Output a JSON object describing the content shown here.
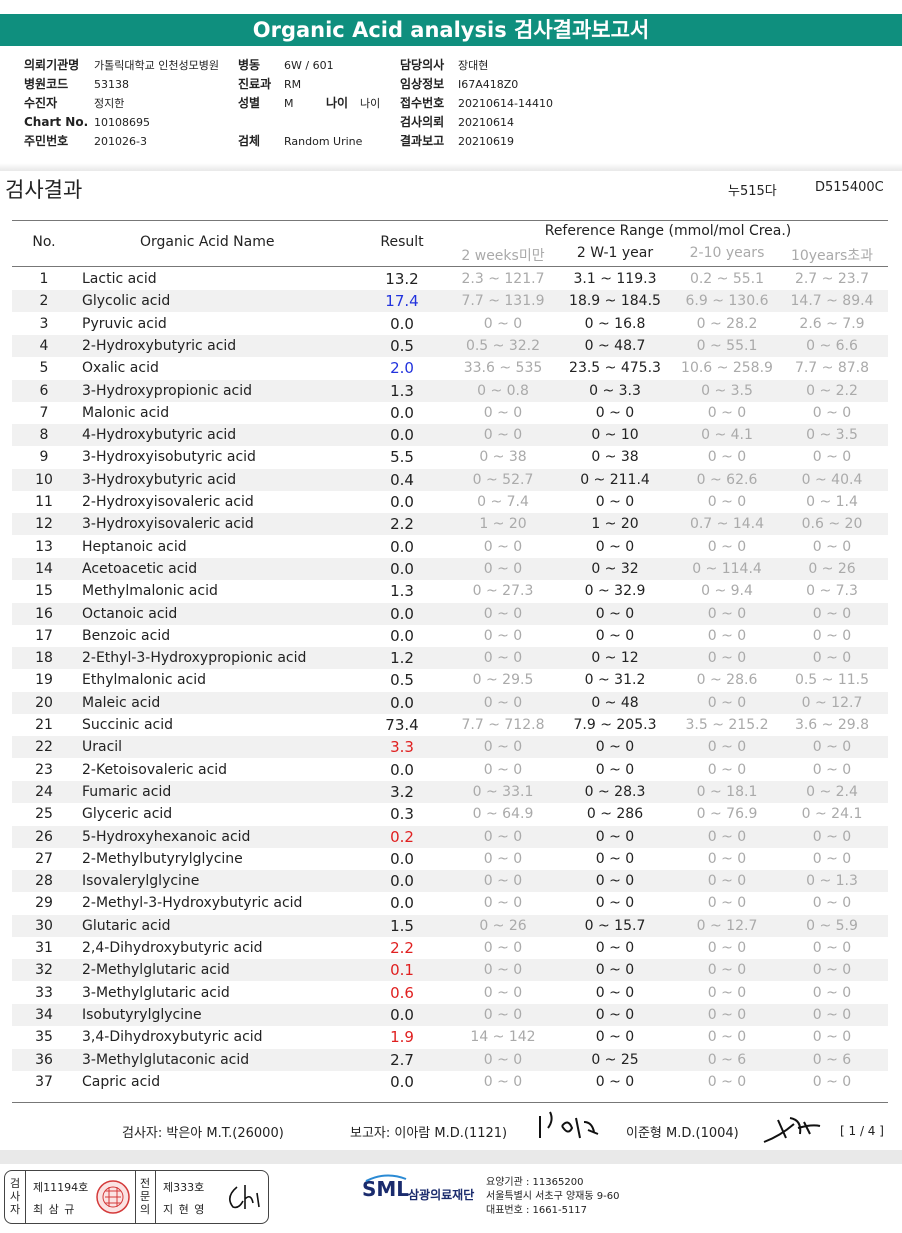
{
  "report_title": "Organic Acid analysis 검사결과보고서",
  "info": {
    "hospital_label": "의뢰기관명",
    "hospital_value": "가톨릭대학교 인천성모병원",
    "ward_label": "병동",
    "ward_value": "6W / 601",
    "doctor_label": "담당의사",
    "doctor_value": "장대현",
    "hosp_code_label": "병원코드",
    "hosp_code_value": "53138",
    "dept_label": "진료과",
    "dept_value": "RM",
    "clinical_label": "임상정보",
    "clinical_value": "I67A418Z0",
    "patient_label": "수진자",
    "patient_value": "정지한",
    "sex_label": "성별",
    "sex_value": "M",
    "age_label": "나이",
    "age_value": "나이",
    "receipt_label": "접수번호",
    "receipt_value": "20210614-14410",
    "chart_label": "Chart No.",
    "chart_value": "10108695",
    "specimen_label": "검체",
    "specimen_value": "Random Urine",
    "request_label": "검사의뢰",
    "request_value": "20210614",
    "id_label": "주민번호",
    "id_value": "201026-3",
    "report_label": "결과보고",
    "report_value": "20210619"
  },
  "section_title": "검사결과",
  "section_code1": "누515다",
  "section_code2": "D515400C",
  "table_header": {
    "no": "No.",
    "name": "Organic Acid Name",
    "result": "Result",
    "ref_range": "Reference Range (mmol/mol Crea.)",
    "ref_cols": [
      "2 weeks미만",
      "2 W-1 year",
      "2-10 years",
      "10years초과"
    ]
  },
  "rows": [
    {
      "no": "1",
      "name": "Lactic acid",
      "result": "13.2",
      "flag": "normal",
      "r1": "2.3 ~ 121.7",
      "r2": "3.1 ~ 119.3",
      "r3": "0.2 ~ 55.1",
      "r4": "2.7 ~ 23.7"
    },
    {
      "no": "2",
      "name": "Glycolic acid",
      "result": "17.4",
      "flag": "high",
      "r1": "7.7 ~ 131.9",
      "r2": "18.9 ~ 184.5",
      "r3": "6.9 ~ 130.6",
      "r4": "14.7 ~ 89.4"
    },
    {
      "no": "3",
      "name": "Pyruvic acid",
      "result": "0.0",
      "flag": "normal",
      "r1": "0 ~ 0",
      "r2": "0 ~ 16.8",
      "r3": "0 ~ 28.2",
      "r4": "2.6 ~ 7.9"
    },
    {
      "no": "4",
      "name": "2-Hydroxybutyric acid",
      "result": "0.5",
      "flag": "normal",
      "r1": "0.5 ~ 32.2",
      "r2": "0 ~ 48.7",
      "r3": "0 ~ 55.1",
      "r4": "0 ~ 6.6"
    },
    {
      "no": "5",
      "name": "Oxalic acid",
      "result": "2.0",
      "flag": "high",
      "r1": "33.6 ~ 535",
      "r2": "23.5 ~ 475.3",
      "r3": "10.6 ~ 258.9",
      "r4": "7.7 ~ 87.8"
    },
    {
      "no": "6",
      "name": "3-Hydroxypropionic acid",
      "result": "1.3",
      "flag": "normal",
      "r1": "0 ~ 0.8",
      "r2": "0 ~ 3.3",
      "r3": "0 ~ 3.5",
      "r4": "0 ~ 2.2"
    },
    {
      "no": "7",
      "name": "Malonic acid",
      "result": "0.0",
      "flag": "normal",
      "r1": "0 ~ 0",
      "r2": "0 ~ 0",
      "r3": "0 ~ 0",
      "r4": "0 ~ 0"
    },
    {
      "no": "8",
      "name": "4-Hydroxybutyric acid",
      "result": "0.0",
      "flag": "normal",
      "r1": "0 ~ 0",
      "r2": "0 ~ 10",
      "r3": "0 ~ 4.1",
      "r4": "0 ~ 3.5"
    },
    {
      "no": "9",
      "name": "3-Hydroxyisobutyric acid",
      "result": "5.5",
      "flag": "normal",
      "r1": "0 ~ 38",
      "r2": "0 ~ 38",
      "r3": "0 ~ 0",
      "r4": "0 ~ 0"
    },
    {
      "no": "10",
      "name": "3-Hydroxybutyric acid",
      "result": "0.4",
      "flag": "normal",
      "r1": "0 ~ 52.7",
      "r2": "0 ~ 211.4",
      "r3": "0 ~ 62.6",
      "r4": "0 ~ 40.4"
    },
    {
      "no": "11",
      "name": "2-Hydroxyisovaleric acid",
      "result": "0.0",
      "flag": "normal",
      "r1": "0 ~ 7.4",
      "r2": "0 ~ 0",
      "r3": "0 ~ 0",
      "r4": "0 ~ 1.4"
    },
    {
      "no": "12",
      "name": "3-Hydroxyisovaleric acid",
      "result": "2.2",
      "flag": "normal",
      "r1": "1 ~ 20",
      "r2": "1 ~ 20",
      "r3": "0.7 ~ 14.4",
      "r4": "0.6 ~ 20"
    },
    {
      "no": "13",
      "name": "Heptanoic acid",
      "result": "0.0",
      "flag": "normal",
      "r1": "0 ~ 0",
      "r2": "0 ~ 0",
      "r3": "0 ~ 0",
      "r4": "0 ~ 0"
    },
    {
      "no": "14",
      "name": "Acetoacetic acid",
      "result": "0.0",
      "flag": "normal",
      "r1": "0 ~ 0",
      "r2": "0 ~ 32",
      "r3": "0 ~ 114.4",
      "r4": "0 ~ 26"
    },
    {
      "no": "15",
      "name": "Methylmalonic acid",
      "result": "1.3",
      "flag": "normal",
      "r1": "0 ~ 27.3",
      "r2": "0 ~ 32.9",
      "r3": "0 ~ 9.4",
      "r4": "0 ~ 7.3"
    },
    {
      "no": "16",
      "name": "Octanoic acid",
      "result": "0.0",
      "flag": "normal",
      "r1": "0 ~ 0",
      "r2": "0 ~ 0",
      "r3": "0 ~ 0",
      "r4": "0 ~ 0"
    },
    {
      "no": "17",
      "name": "Benzoic acid",
      "result": "0.0",
      "flag": "normal",
      "r1": "0 ~ 0",
      "r2": "0 ~ 0",
      "r3": "0 ~ 0",
      "r4": "0 ~ 0"
    },
    {
      "no": "18",
      "name": "2-Ethyl-3-Hydroxypropionic acid",
      "result": "1.2",
      "flag": "normal",
      "r1": "0 ~ 0",
      "r2": "0 ~ 12",
      "r3": "0 ~ 0",
      "r4": "0 ~ 0"
    },
    {
      "no": "19",
      "name": "Ethylmalonic acid",
      "result": "0.5",
      "flag": "normal",
      "r1": "0 ~ 29.5",
      "r2": "0 ~ 31.2",
      "r3": "0 ~ 28.6",
      "r4": "0.5 ~ 11.5"
    },
    {
      "no": "20",
      "name": "Maleic acid",
      "result": "0.0",
      "flag": "normal",
      "r1": "0 ~ 0",
      "r2": "0 ~ 48",
      "r3": "0 ~ 0",
      "r4": "0 ~ 12.7"
    },
    {
      "no": "21",
      "name": "Succinic acid",
      "result": "73.4",
      "flag": "normal",
      "r1": "7.7 ~ 712.8",
      "r2": "7.9 ~ 205.3",
      "r3": "3.5 ~ 215.2",
      "r4": "3.6 ~ 29.8"
    },
    {
      "no": "22",
      "name": "Uracil",
      "result": "3.3",
      "flag": "low",
      "r1": "0 ~ 0",
      "r2": "0 ~ 0",
      "r3": "0 ~ 0",
      "r4": "0 ~ 0"
    },
    {
      "no": "23",
      "name": "2-Ketoisovaleric acid",
      "result": "0.0",
      "flag": "normal",
      "r1": "0 ~ 0",
      "r2": "0 ~ 0",
      "r3": "0 ~ 0",
      "r4": "0 ~ 0"
    },
    {
      "no": "24",
      "name": "Fumaric acid",
      "result": "3.2",
      "flag": "normal",
      "r1": "0 ~ 33.1",
      "r2": "0 ~ 28.3",
      "r3": "0 ~ 18.1",
      "r4": "0 ~ 2.4"
    },
    {
      "no": "25",
      "name": "Glyceric acid",
      "result": "0.3",
      "flag": "normal",
      "r1": "0 ~ 64.9",
      "r2": "0 ~ 286",
      "r3": "0 ~ 76.9",
      "r4": "0 ~ 24.1"
    },
    {
      "no": "26",
      "name": "5-Hydroxyhexanoic acid",
      "result": "0.2",
      "flag": "low",
      "r1": "0 ~ 0",
      "r2": "0 ~ 0",
      "r3": "0 ~ 0",
      "r4": "0 ~ 0"
    },
    {
      "no": "27",
      "name": "2-Methylbutyrylglycine",
      "result": "0.0",
      "flag": "normal",
      "r1": "0 ~ 0",
      "r2": "0 ~ 0",
      "r3": "0 ~ 0",
      "r4": "0 ~ 0"
    },
    {
      "no": "28",
      "name": "Isovalerylglycine",
      "result": "0.0",
      "flag": "normal",
      "r1": "0 ~ 0",
      "r2": "0 ~ 0",
      "r3": "0 ~ 0",
      "r4": "0 ~ 1.3"
    },
    {
      "no": "29",
      "name": "2-Methyl-3-Hydroxybutyric acid",
      "result": "0.0",
      "flag": "normal",
      "r1": "0 ~ 0",
      "r2": "0 ~ 0",
      "r3": "0 ~ 0",
      "r4": "0 ~ 0"
    },
    {
      "no": "30",
      "name": "Glutaric acid",
      "result": "1.5",
      "flag": "normal",
      "r1": "0 ~ 26",
      "r2": "0 ~ 15.7",
      "r3": "0 ~ 12.7",
      "r4": "0 ~ 5.9"
    },
    {
      "no": "31",
      "name": "2,4-Dihydroxybutyric acid",
      "result": "2.2",
      "flag": "low",
      "r1": "0 ~ 0",
      "r2": "0 ~ 0",
      "r3": "0 ~ 0",
      "r4": "0 ~ 0"
    },
    {
      "no": "32",
      "name": "2-Methylglutaric acid",
      "result": "0.1",
      "flag": "low",
      "r1": "0 ~ 0",
      "r2": "0 ~ 0",
      "r3": "0 ~ 0",
      "r4": "0 ~ 0"
    },
    {
      "no": "33",
      "name": "3-Methylglutaric acid",
      "result": "0.6",
      "flag": "low",
      "r1": "0 ~ 0",
      "r2": "0 ~ 0",
      "r3": "0 ~ 0",
      "r4": "0 ~ 0"
    },
    {
      "no": "34",
      "name": "Isobutyrylglycine",
      "result": "0.0",
      "flag": "normal",
      "r1": "0 ~ 0",
      "r2": "0 ~ 0",
      "r3": "0 ~ 0",
      "r4": "0 ~ 0"
    },
    {
      "no": "35",
      "name": "3,4-Dihydroxybutyric acid",
      "result": "1.9",
      "flag": "low",
      "r1": "14 ~ 142",
      "r2": "0 ~ 0",
      "r3": "0 ~ 0",
      "r4": "0 ~ 0"
    },
    {
      "no": "36",
      "name": "3-Methylglutaconic acid",
      "result": "2.7",
      "flag": "normal",
      "r1": "0 ~ 0",
      "r2": "0 ~ 25",
      "r3": "0 ~ 6",
      "r4": "0 ~ 6"
    },
    {
      "no": "37",
      "name": "Capric acid",
      "result": "0.0",
      "flag": "normal",
      "r1": "0 ~ 0",
      "r2": "0 ~ 0",
      "r3": "0 ~ 0",
      "r4": "0 ~ 0"
    }
  ],
  "footer": {
    "tester": "검사자: 박은아 M.T.(26000)",
    "reporter": "보고자: 이아람 M.D.(1121)",
    "doctor2": "이준형 M.D.(1004)",
    "page": "[ 1 / 4 ]"
  },
  "license": {
    "left_vert": "검사자",
    "left_no": "제11194호",
    "left_name": "최 삼 규",
    "right_vert": "전문의",
    "right_no": "제333호",
    "right_name": "지 현 영"
  },
  "org": {
    "logo": "SML",
    "name": "삼광의료재단",
    "code": "요양기관 : 11365200",
    "address": "서울특별시 서초구 양재동 9-60",
    "phone": "대표번호 : 1661-5117"
  },
  "colors": {
    "header_bg": "#0f8f7e",
    "high": "#2233dd",
    "low": "#e02020"
  }
}
